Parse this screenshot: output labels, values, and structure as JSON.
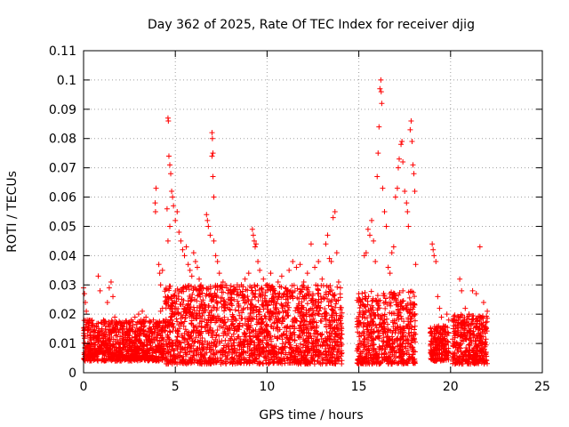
{
  "chart_data": {
    "type": "scatter",
    "title": "Day 362 of 2025, Rate Of TEC Index for receiver djig",
    "xlabel": "GPS time / hours",
    "ylabel": "ROTI / TECUs",
    "xlim": [
      0,
      25
    ],
    "ylim": [
      0,
      0.11
    ],
    "x_ticks": [
      {
        "value": 0,
        "label": "0"
      },
      {
        "value": 5,
        "label": "5"
      },
      {
        "value": 10,
        "label": "10"
      },
      {
        "value": 15,
        "label": "15"
      },
      {
        "value": 20,
        "label": "20"
      },
      {
        "value": 25,
        "label": "25"
      }
    ],
    "y_ticks": [
      {
        "value": 0,
        "label": "0"
      },
      {
        "value": 0.01,
        "label": "0.01"
      },
      {
        "value": 0.02,
        "label": "0.02"
      },
      {
        "value": 0.03,
        "label": "0.03"
      },
      {
        "value": 0.04,
        "label": "0.04"
      },
      {
        "value": 0.05,
        "label": "0.05"
      },
      {
        "value": 0.06,
        "label": "0.06"
      },
      {
        "value": 0.07,
        "label": "0.07"
      },
      {
        "value": 0.08,
        "label": "0.08"
      },
      {
        "value": 0.09,
        "label": "0.09"
      },
      {
        "value": 0.1,
        "label": "0.1"
      },
      {
        "value": 0.11,
        "label": "0.11"
      }
    ],
    "grid": true,
    "marker": "+",
    "series": [
      {
        "color": "#ff0000",
        "points": [
          [
            0.0,
            0.029
          ],
          [
            0.05,
            0.027
          ],
          [
            0.1,
            0.024
          ],
          [
            0.15,
            0.021
          ],
          [
            0.2,
            0.018
          ],
          [
            0.3,
            0.016
          ],
          [
            0.4,
            0.012
          ],
          [
            0.5,
            0.009
          ],
          [
            0.6,
            0.007
          ],
          [
            0.8,
            0.033
          ],
          [
            0.9,
            0.028
          ],
          [
            1.0,
            0.015
          ],
          [
            1.2,
            0.011
          ],
          [
            1.3,
            0.024
          ],
          [
            1.4,
            0.029
          ],
          [
            1.5,
            0.031
          ],
          [
            1.6,
            0.026
          ],
          [
            1.7,
            0.019
          ],
          [
            1.8,
            0.013
          ],
          [
            2.0,
            0.01
          ],
          [
            2.2,
            0.008
          ],
          [
            2.4,
            0.012
          ],
          [
            2.6,
            0.018
          ],
          [
            2.8,
            0.019
          ],
          [
            3.0,
            0.02
          ],
          [
            3.2,
            0.021
          ],
          [
            3.4,
            0.019
          ],
          [
            3.6,
            0.017
          ],
          [
            3.8,
            0.018
          ],
          [
            4.0,
            0.016
          ],
          [
            4.2,
            0.021
          ],
          [
            4.3,
            0.022
          ],
          [
            3.95,
            0.063
          ],
          [
            3.9,
            0.058
          ],
          [
            3.92,
            0.055
          ],
          [
            4.1,
            0.037
          ],
          [
            4.15,
            0.034
          ],
          [
            4.2,
            0.03
          ],
          [
            4.3,
            0.035
          ],
          [
            4.6,
            0.087
          ],
          [
            4.62,
            0.086
          ],
          [
            4.65,
            0.074
          ],
          [
            4.7,
            0.071
          ],
          [
            4.75,
            0.068
          ],
          [
            4.8,
            0.062
          ],
          [
            4.85,
            0.06
          ],
          [
            4.9,
            0.057
          ],
          [
            4.55,
            0.056
          ],
          [
            4.6,
            0.045
          ],
          [
            4.7,
            0.05
          ],
          [
            5.0,
            0.052
          ],
          [
            5.1,
            0.055
          ],
          [
            5.2,
            0.048
          ],
          [
            5.3,
            0.045
          ],
          [
            5.4,
            0.042
          ],
          [
            5.5,
            0.04
          ],
          [
            5.6,
            0.043
          ],
          [
            5.7,
            0.037
          ],
          [
            5.8,
            0.035
          ],
          [
            5.9,
            0.033
          ],
          [
            6.0,
            0.041
          ],
          [
            6.1,
            0.038
          ],
          [
            6.2,
            0.036
          ],
          [
            6.3,
            0.032
          ],
          [
            6.4,
            0.03
          ],
          [
            6.5,
            0.029
          ],
          [
            6.7,
            0.054
          ],
          [
            6.75,
            0.052
          ],
          [
            6.8,
            0.05
          ],
          [
            6.9,
            0.047
          ],
          [
            7.0,
            0.082
          ],
          [
            7.02,
            0.08
          ],
          [
            7.05,
            0.075
          ],
          [
            7.0,
            0.074
          ],
          [
            7.05,
            0.067
          ],
          [
            7.1,
            0.06
          ],
          [
            7.1,
            0.045
          ],
          [
            7.2,
            0.04
          ],
          [
            7.3,
            0.038
          ],
          [
            7.4,
            0.034
          ],
          [
            7.6,
            0.031
          ],
          [
            7.8,
            0.029
          ],
          [
            8.0,
            0.028
          ],
          [
            8.2,
            0.025
          ],
          [
            8.4,
            0.027
          ],
          [
            8.6,
            0.03
          ],
          [
            8.8,
            0.032
          ],
          [
            9.0,
            0.034
          ],
          [
            9.2,
            0.049
          ],
          [
            9.25,
            0.047
          ],
          [
            9.3,
            0.045
          ],
          [
            9.35,
            0.043
          ],
          [
            9.4,
            0.044
          ],
          [
            9.5,
            0.038
          ],
          [
            9.6,
            0.035
          ],
          [
            9.8,
            0.032
          ],
          [
            10.0,
            0.03
          ],
          [
            10.2,
            0.034
          ],
          [
            10.4,
            0.028
          ],
          [
            10.6,
            0.031
          ],
          [
            10.8,
            0.033
          ],
          [
            11.0,
            0.029
          ],
          [
            11.2,
            0.035
          ],
          [
            11.4,
            0.038
          ],
          [
            11.6,
            0.036
          ],
          [
            11.8,
            0.037
          ],
          [
            12.0,
            0.031
          ],
          [
            12.2,
            0.034
          ],
          [
            12.4,
            0.044
          ],
          [
            12.6,
            0.036
          ],
          [
            12.8,
            0.038
          ],
          [
            13.0,
            0.032
          ],
          [
            13.2,
            0.044
          ],
          [
            13.3,
            0.047
          ],
          [
            13.4,
            0.039
          ],
          [
            13.5,
            0.038
          ],
          [
            13.6,
            0.053
          ],
          [
            13.7,
            0.055
          ],
          [
            13.8,
            0.041
          ],
          [
            13.9,
            0.031
          ],
          [
            14.0,
            0.029
          ],
          [
            15.0,
            0.027
          ],
          [
            15.1,
            0.023
          ],
          [
            15.2,
            0.025
          ],
          [
            15.3,
            0.04
          ],
          [
            15.4,
            0.041
          ],
          [
            15.5,
            0.049
          ],
          [
            15.6,
            0.047
          ],
          [
            15.7,
            0.052
          ],
          [
            15.8,
            0.045
          ],
          [
            15.9,
            0.038
          ],
          [
            16.0,
            0.067
          ],
          [
            16.05,
            0.075
          ],
          [
            16.1,
            0.084
          ],
          [
            16.15,
            0.097
          ],
          [
            16.2,
            0.1
          ],
          [
            16.22,
            0.096
          ],
          [
            16.25,
            0.092
          ],
          [
            16.3,
            0.063
          ],
          [
            16.4,
            0.055
          ],
          [
            16.5,
            0.05
          ],
          [
            16.6,
            0.036
          ],
          [
            16.7,
            0.034
          ],
          [
            16.8,
            0.041
          ],
          [
            16.9,
            0.043
          ],
          [
            17.0,
            0.06
          ],
          [
            17.1,
            0.063
          ],
          [
            17.15,
            0.07
          ],
          [
            17.2,
            0.073
          ],
          [
            17.3,
            0.078
          ],
          [
            17.35,
            0.079
          ],
          [
            17.4,
            0.072
          ],
          [
            17.5,
            0.062
          ],
          [
            17.6,
            0.058
          ],
          [
            17.65,
            0.055
          ],
          [
            17.7,
            0.05
          ],
          [
            17.8,
            0.083
          ],
          [
            17.85,
            0.086
          ],
          [
            17.9,
            0.079
          ],
          [
            17.95,
            0.071
          ],
          [
            18.0,
            0.068
          ],
          [
            18.05,
            0.062
          ],
          [
            18.1,
            0.037
          ],
          [
            19.0,
            0.044
          ],
          [
            19.05,
            0.042
          ],
          [
            19.1,
            0.04
          ],
          [
            19.2,
            0.038
          ],
          [
            19.3,
            0.026
          ],
          [
            19.4,
            0.022
          ],
          [
            19.5,
            0.019
          ],
          [
            19.6,
            0.016
          ],
          [
            19.7,
            0.014
          ],
          [
            19.8,
            0.02
          ],
          [
            19.9,
            0.018
          ],
          [
            20.2,
            0.018
          ],
          [
            20.4,
            0.019
          ],
          [
            20.5,
            0.032
          ],
          [
            20.6,
            0.028
          ],
          [
            20.8,
            0.022
          ],
          [
            21.0,
            0.02
          ],
          [
            21.2,
            0.028
          ],
          [
            21.4,
            0.027
          ],
          [
            21.6,
            0.043
          ],
          [
            21.8,
            0.024
          ],
          [
            22.0,
            0.021
          ]
        ]
      }
    ]
  }
}
